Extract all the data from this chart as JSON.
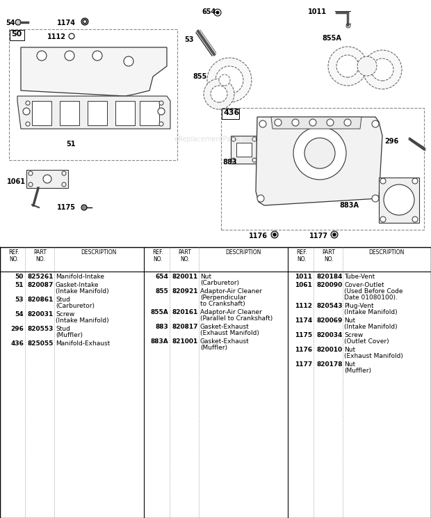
{
  "bg_color": "#ffffff",
  "watermark": "eReplacementParts.com",
  "col1_data": [
    [
      "50",
      "825261",
      "Manifold-Intake"
    ],
    [
      "51",
      "820087",
      "Gasket-Intake\n(Intake Manifold)"
    ],
    [
      "53",
      "820861",
      "Stud\n(Carburetor)"
    ],
    [
      "54",
      "820031",
      "Screw\n(Intake Manifold)"
    ],
    [
      "296",
      "820553",
      "Stud\n(Muffler)"
    ],
    [
      "436",
      "825055",
      "Manifold-Exhaust"
    ]
  ],
  "col2_data": [
    [
      "654",
      "820011",
      "Nut\n(Carburetor)"
    ],
    [
      "855",
      "820921",
      "Adaptor-Air Cleaner\n(Perpendicular\nto Crankshaft)"
    ],
    [
      "855A",
      "820161",
      "Adaptor-Air Cleaner\n(Parallel to Crankshaft)"
    ],
    [
      "883",
      "820817",
      "Gasket-Exhaust\n(Exhaust Manifold)"
    ],
    [
      "883A",
      "821001",
      "Gasket-Exhaust\n(Muffler)"
    ]
  ],
  "col3_data": [
    [
      "1011",
      "820184",
      "Tube-Vent"
    ],
    [
      "1061",
      "820090",
      "Cover-Outlet\n(Used Before Code\nDate 01080100)."
    ],
    [
      "1112",
      "820543",
      "Plug-Vent\n(Intake Manifold)"
    ],
    [
      "1174",
      "820069",
      "Nut\n(Intake Manifold)"
    ],
    [
      "1175",
      "820034",
      "Screw\n(Outlet Cover)"
    ],
    [
      "1176",
      "820010",
      "Nut\n(Exhaust Manifold)"
    ],
    [
      "1177",
      "820178",
      "Nut\n(Muffler)"
    ]
  ]
}
